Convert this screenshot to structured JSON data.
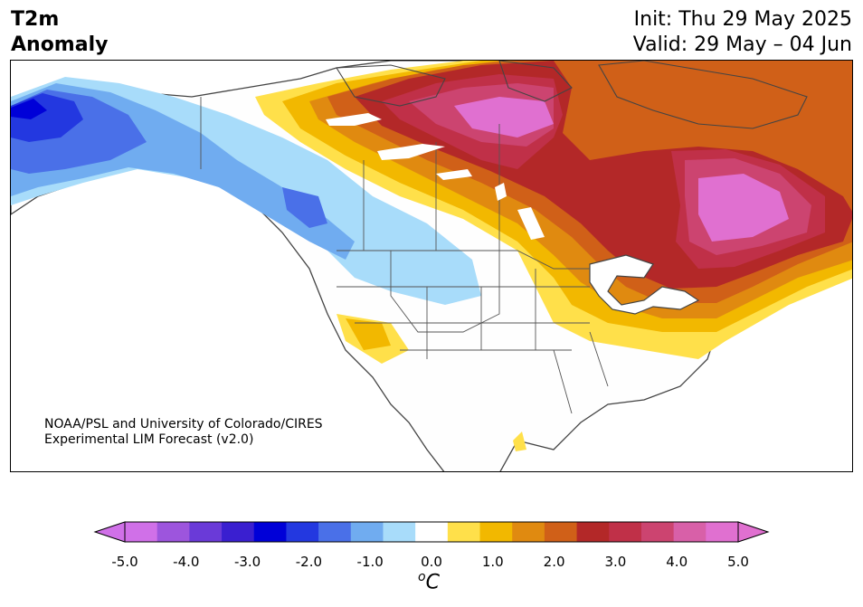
{
  "title": {
    "variable": "T2m",
    "subtitle": "Anomaly",
    "init": "Init: Thu 29 May 2025",
    "valid": "Valid: 29 May – 04 Jun"
  },
  "credit": {
    "line1": "NOAA/PSL and University of Colorado/CIRES",
    "line2": "Experimental LIM Forecast (v2.0)"
  },
  "colorbar": {
    "unit_symbol": "o",
    "unit_letter": "C",
    "tick_labels": [
      "-5.0",
      "-4.0",
      "-3.0",
      "-2.0",
      "-1.0",
      "0.0",
      "1.0",
      "2.0",
      "3.0",
      "4.0",
      "5.0"
    ],
    "levels": [
      -5.0,
      -4.5,
      -4.0,
      -3.5,
      -3.0,
      -2.5,
      -2.0,
      -1.5,
      -1.0,
      -0.5,
      0.5,
      1.0,
      1.5,
      2.0,
      2.5,
      3.0,
      3.5,
      4.0,
      4.5,
      5.0
    ],
    "colors": [
      "#d070e8",
      "#9d55dd",
      "#6a3ad8",
      "#3a1fd0",
      "#0000d8",
      "#2338e0",
      "#4a70e8",
      "#70acf0",
      "#a8dcfa",
      "#ffffff",
      "#ffe04a",
      "#f2b800",
      "#e08a10",
      "#d06018",
      "#b32828",
      "#c03048",
      "#cc4470",
      "#d860a8",
      "#e070d0"
    ],
    "under_color": "#d070e8",
    "over_color": "#e070d0"
  },
  "map": {
    "region": "North America",
    "ocean_color": "#ffffff",
    "land_neutral_color": "#fefefe"
  }
}
